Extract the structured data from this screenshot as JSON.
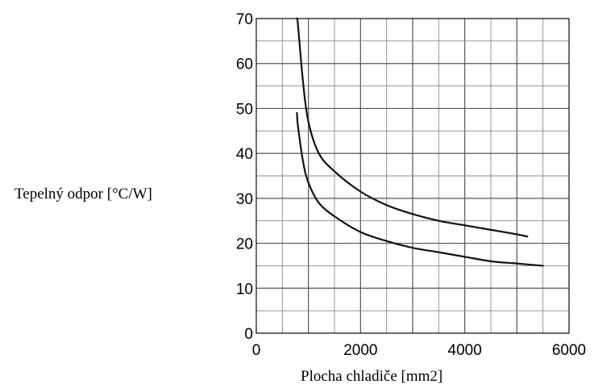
{
  "chart_data": {
    "type": "line",
    "xlabel": "Plocha chladiče [mm2]",
    "ylabel": "Tepelný odpor [°C/W]",
    "xlim": [
      0,
      6000
    ],
    "ylim": [
      0,
      70
    ],
    "x_ticks": [
      "0",
      "2000",
      "4000",
      "6000"
    ],
    "y_ticks": [
      "0",
      "10",
      "20",
      "30",
      "40",
      "50",
      "60",
      "70"
    ],
    "grid": true,
    "series": [
      {
        "x": [
          780,
          800,
          900,
          1000,
          1200,
          1500,
          2000,
          2500,
          3000,
          3500,
          4000,
          4500,
          5000,
          5200
        ],
        "y": [
          70,
          68.5,
          55.5,
          47,
          40,
          36,
          31.5,
          28.5,
          26.5,
          25,
          24,
          23,
          22,
          21.5
        ]
      },
      {
        "x": [
          780,
          800,
          900,
          1000,
          1200,
          1500,
          2000,
          2500,
          3000,
          3500,
          4000,
          4500,
          5000,
          5500
        ],
        "y": [
          49,
          46,
          38,
          33.5,
          29,
          26,
          22.5,
          20.5,
          19,
          18,
          17,
          16,
          15.5,
          15
        ]
      }
    ]
  }
}
